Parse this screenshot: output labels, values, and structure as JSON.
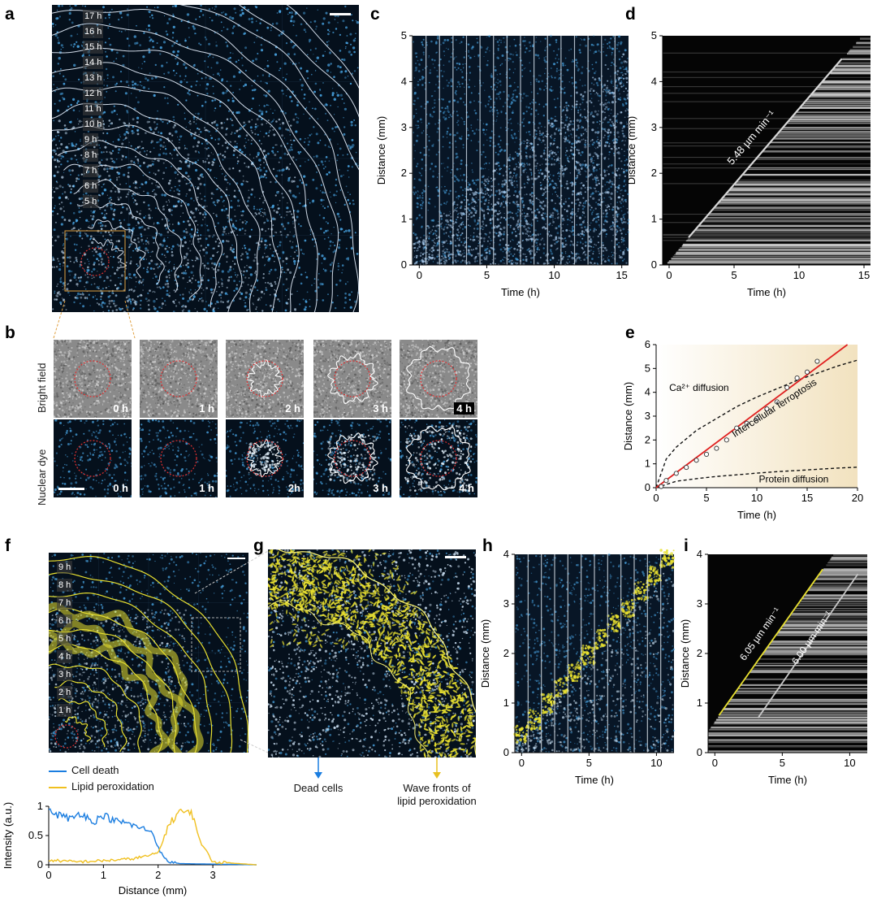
{
  "panels": {
    "a": {
      "label": "a",
      "time_labels": [
        "17 h",
        "16 h",
        "15 h",
        "14 h",
        "13 h",
        "12 h",
        "11 h",
        "10 h",
        "9 h",
        "8 h",
        "7 h",
        "6 h",
        "5 h"
      ]
    },
    "b": {
      "label": "b",
      "rows": [
        "Bright field",
        "Nuclear dye"
      ],
      "bright_times": [
        "0 h",
        "1 h",
        "2 h",
        "3 h",
        "4 h"
      ],
      "nuclear_times": [
        "0 h",
        "1 h",
        "2h",
        "3 h",
        "4 h"
      ]
    },
    "c": {
      "label": "c"
    },
    "d": {
      "label": "d",
      "annotation": "5.48 µm min⁻¹"
    },
    "e": {
      "label": "e",
      "ann_ca": "Ca²⁺ diffusion",
      "ann_ferro": "Intercellular ferroptosis",
      "ann_protein": "Protein diffusion"
    },
    "f": {
      "label": "f",
      "time_labels": [
        "9 h",
        "8 h",
        "7 h",
        "6 h",
        "5 h",
        "4 h",
        "3 h",
        "2 h",
        "1 h"
      ],
      "legend": [
        "Cell death",
        "Lipid peroxidation"
      ]
    },
    "g": {
      "label": "g",
      "arrow_dead": "Dead cells",
      "arrow_wave": "Wave fronts of\nlipid peroxidation"
    },
    "h": {
      "label": "h"
    },
    "i": {
      "label": "i",
      "ann_yellow": "6.05 µm min⁻¹",
      "ann_white": "6.00 µm min⁻¹"
    }
  },
  "colors": {
    "cell_blue": "#4aa8e8",
    "lipid_yellow": "#e8e030",
    "red_fit": "#e02020",
    "death_line": "#1a7de0",
    "lipid_line": "#f0c020"
  },
  "chart_data": [
    {
      "id": "c",
      "type": "image-kymograph",
      "xlabel": "Time (h)",
      "ylabel": "Distance (mm)",
      "xlim": [
        -0.5,
        15.5
      ],
      "ylim": [
        0,
        5
      ],
      "xticks": [
        0,
        5,
        10,
        15
      ],
      "yticks": [
        0,
        1,
        2,
        3,
        4,
        5
      ]
    },
    {
      "id": "d",
      "type": "image-kymograph",
      "xlabel": "Time (h)",
      "ylabel": "Distance (mm)",
      "xlim": [
        -0.5,
        15.5
      ],
      "ylim": [
        0,
        5
      ],
      "xticks": [
        0,
        5,
        10,
        15
      ],
      "yticks": [
        0,
        1,
        2,
        3,
        4,
        5
      ],
      "fit_line": {
        "x": [
          1.5,
          13.3
        ],
        "y": [
          0.6,
          4.5
        ]
      }
    },
    {
      "id": "e",
      "type": "scatter",
      "xlabel": "Time (h)",
      "ylabel": "Distance (mm)",
      "xlim": [
        0,
        20
      ],
      "ylim": [
        0,
        6
      ],
      "xticks": [
        0,
        5,
        10,
        15,
        20
      ],
      "yticks": [
        0,
        1,
        2,
        3,
        4,
        5,
        6
      ],
      "points": {
        "x": [
          0.5,
          1,
          2,
          3,
          4,
          5,
          6,
          7,
          8,
          9,
          10,
          11,
          12,
          13,
          14,
          15,
          16
        ],
        "y": [
          0.05,
          0.3,
          0.6,
          0.85,
          1.15,
          1.4,
          1.65,
          2.0,
          2.5,
          2.7,
          2.9,
          3.3,
          3.6,
          4.2,
          4.6,
          4.85,
          5.3
        ]
      },
      "fit_line": {
        "x": [
          0,
          19
        ],
        "y": [
          0,
          6.0
        ]
      },
      "dashed_curves": [
        {
          "name": "Ca2+",
          "x": [
            0,
            1,
            2,
            4,
            6,
            8,
            10,
            12,
            14,
            16,
            18,
            20
          ],
          "y": [
            0,
            1.2,
            1.7,
            2.4,
            2.9,
            3.4,
            3.8,
            4.15,
            4.5,
            4.8,
            5.1,
            5.35
          ]
        },
        {
          "name": "Protein",
          "x": [
            0,
            2,
            4,
            6,
            8,
            10,
            12,
            14,
            16,
            18,
            20
          ],
          "y": [
            0,
            0.27,
            0.38,
            0.47,
            0.54,
            0.61,
            0.67,
            0.72,
            0.77,
            0.82,
            0.86
          ]
        }
      ]
    },
    {
      "id": "f-profile",
      "type": "line",
      "xlabel": "Distance (mm)",
      "ylabel": "Intensity (a.u.)",
      "xlim": [
        0,
        3.8
      ],
      "ylim": [
        0,
        1.0
      ],
      "xticks": [
        0,
        1,
        2,
        3
      ],
      "yticks": [
        0,
        0.5,
        1.0
      ],
      "series": [
        {
          "name": "Cell death",
          "x": [
            0,
            0.2,
            0.4,
            0.6,
            0.8,
            1.0,
            1.2,
            1.4,
            1.6,
            1.8,
            1.9,
            2.0,
            2.1,
            2.2,
            2.4,
            3.8
          ],
          "y": [
            0.9,
            0.85,
            0.78,
            0.9,
            0.72,
            0.85,
            0.75,
            0.72,
            0.65,
            0.6,
            0.55,
            0.3,
            0.12,
            0.05,
            0.02,
            0.0
          ]
        },
        {
          "name": "Lipid peroxidation",
          "x": [
            0,
            0.5,
            1.0,
            1.5,
            1.8,
            2.0,
            2.1,
            2.2,
            2.3,
            2.4,
            2.5,
            2.6,
            2.7,
            2.8,
            3.0,
            3.8
          ],
          "y": [
            0.08,
            0.05,
            0.07,
            0.1,
            0.15,
            0.2,
            0.45,
            0.7,
            0.8,
            0.95,
            0.85,
            0.95,
            0.6,
            0.35,
            0.05,
            0.0
          ]
        }
      ]
    },
    {
      "id": "h",
      "type": "image-kymograph",
      "xlabel": "Time (h)",
      "ylabel": "Distance (mm)",
      "xlim": [
        -0.5,
        11.3
      ],
      "ylim": [
        0,
        4
      ],
      "xticks": [
        0,
        5,
        10
      ],
      "yticks": [
        0,
        1,
        2,
        3,
        4
      ]
    },
    {
      "id": "i",
      "type": "image-kymograph",
      "xlabel": "Time (h)",
      "ylabel": "Distance (mm)",
      "xlim": [
        -0.5,
        11.3
      ],
      "ylim": [
        0,
        4
      ],
      "xticks": [
        0,
        5,
        10
      ],
      "yticks": [
        0,
        1,
        2,
        3,
        4
      ],
      "fit_lines": [
        {
          "x": [
            0.3,
            8.0
          ],
          "y": [
            0.75,
            3.7
          ]
        },
        {
          "x": [
            3.2,
            10.6
          ],
          "y": [
            0.7,
            3.6
          ]
        }
      ]
    }
  ]
}
